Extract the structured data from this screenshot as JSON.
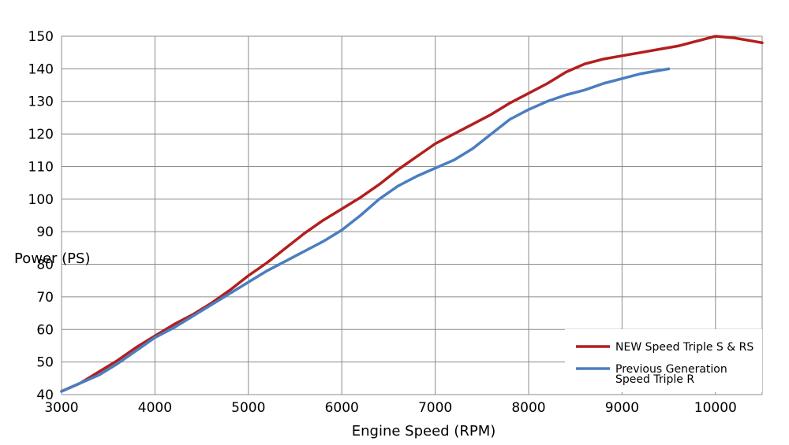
{
  "chart_data": {
    "type": "line",
    "xlabel": "Engine Speed (RPM)",
    "ylabel": "Power (PS)",
    "xlim": [
      3000,
      10500
    ],
    "ylim": [
      40,
      150
    ],
    "x_ticks": [
      3000,
      4000,
      5000,
      6000,
      7000,
      8000,
      9000,
      10000
    ],
    "y_ticks": [
      40,
      50,
      60,
      70,
      80,
      90,
      100,
      110,
      120,
      130,
      140,
      150
    ],
    "grid": true,
    "legend_position": "bottom-right",
    "series": [
      {
        "name": "NEW Speed Triple S & RS",
        "color": "#b21f1f",
        "points": [
          [
            3000,
            41
          ],
          [
            3200,
            43.5
          ],
          [
            3400,
            47
          ],
          [
            3600,
            50.5
          ],
          [
            3800,
            54.5
          ],
          [
            4000,
            58
          ],
          [
            4200,
            61.5
          ],
          [
            4400,
            64.5
          ],
          [
            4600,
            68
          ],
          [
            4800,
            72
          ],
          [
            5000,
            76.5
          ],
          [
            5200,
            80.5
          ],
          [
            5400,
            85
          ],
          [
            5600,
            89.5
          ],
          [
            5800,
            93.5
          ],
          [
            6000,
            97
          ],
          [
            6200,
            100.5
          ],
          [
            6400,
            104.5
          ],
          [
            6600,
            109
          ],
          [
            6800,
            113
          ],
          [
            7000,
            117
          ],
          [
            7200,
            120
          ],
          [
            7400,
            123
          ],
          [
            7600,
            126
          ],
          [
            7800,
            129.5
          ],
          [
            8000,
            132.5
          ],
          [
            8200,
            135.5
          ],
          [
            8400,
            139
          ],
          [
            8600,
            141.5
          ],
          [
            8800,
            143
          ],
          [
            9000,
            144
          ],
          [
            9200,
            145
          ],
          [
            9400,
            146
          ],
          [
            9600,
            147
          ],
          [
            9800,
            148.5
          ],
          [
            10000,
            150
          ],
          [
            10200,
            149.5
          ],
          [
            10400,
            148.5
          ],
          [
            10500,
            148
          ]
        ]
      },
      {
        "name": "Previous Generation\nSpeed Triple R",
        "color": "#4a7ec0",
        "points": [
          [
            3000,
            41
          ],
          [
            3200,
            43.5
          ],
          [
            3400,
            46
          ],
          [
            3600,
            49.5
          ],
          [
            3800,
            53.5
          ],
          [
            4000,
            57.5
          ],
          [
            4200,
            60.5
          ],
          [
            4400,
            64
          ],
          [
            4600,
            67.5
          ],
          [
            4800,
            71
          ],
          [
            5000,
            74.5
          ],
          [
            5200,
            78
          ],
          [
            5400,
            81
          ],
          [
            5600,
            84
          ],
          [
            5800,
            87
          ],
          [
            6000,
            90.5
          ],
          [
            6200,
            95
          ],
          [
            6400,
            100
          ],
          [
            6600,
            104
          ],
          [
            6800,
            107
          ],
          [
            7000,
            109.5
          ],
          [
            7200,
            112
          ],
          [
            7400,
            115.5
          ],
          [
            7600,
            120
          ],
          [
            7800,
            124.5
          ],
          [
            8000,
            127.5
          ],
          [
            8200,
            130
          ],
          [
            8400,
            132
          ],
          [
            8600,
            133.5
          ],
          [
            8800,
            135.5
          ],
          [
            9000,
            137
          ],
          [
            9200,
            138.5
          ],
          [
            9400,
            139.5
          ],
          [
            9500,
            140
          ]
        ]
      }
    ]
  }
}
